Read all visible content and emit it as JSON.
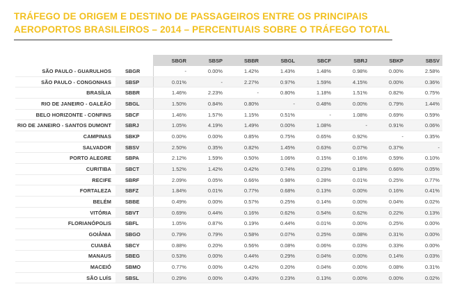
{
  "title": {
    "line1": "TRÁFEGO DE ORIGEM E DESTINO DE PASSAGEIROS ENTRE OS PRINCIPAIS",
    "line2": "AEROPORTOS BRASILEIROS – 2014 – PERCENTUAIS SOBRE O TRÁFEGO TOTAL"
  },
  "table": {
    "columns": [
      "SBGR",
      "SBSP",
      "SBBR",
      "SBGL",
      "SBCF",
      "SBRJ",
      "SBKP",
      "SBSV"
    ],
    "rows": [
      {
        "name": "SÃO PAULO - GUARULHOS",
        "code": "SBGR",
        "values": [
          "-",
          "0.00%",
          "1.42%",
          "1.43%",
          "1.48%",
          "0.98%",
          "0.00%",
          "2.58%"
        ]
      },
      {
        "name": "SÃO PAULO - CONGONHAS",
        "code": "SBSP",
        "values": [
          "0.01%",
          "-",
          "2.27%",
          "0.97%",
          "1.59%",
          "4.15%",
          "0.00%",
          "0.36%"
        ]
      },
      {
        "name": "BRASÍLIA",
        "code": "SBBR",
        "values": [
          "1.46%",
          "2.23%",
          "-",
          "0.80%",
          "1.18%",
          "1.51%",
          "0.82%",
          "0.75%"
        ]
      },
      {
        "name": "RIO DE JANEIRO - GALEÃO",
        "code": "SBGL",
        "values": [
          "1.50%",
          "0.84%",
          "0.80%",
          "-",
          "0.48%",
          "0.00%",
          "0.79%",
          "1.44%"
        ]
      },
      {
        "name": "BELO HORIZONTE - CONFINS",
        "code": "SBCF",
        "values": [
          "1.46%",
          "1.57%",
          "1.15%",
          "0.51%",
          "-",
          "1.08%",
          "0.69%",
          "0.59%"
        ]
      },
      {
        "name": "RIO DE JANEIRO - SANTOS DUMONT",
        "code": "SBRJ",
        "values": [
          "1.05%",
          "4.19%",
          "1.49%",
          "0.00%",
          "1.08%",
          "-",
          "0.91%",
          "0.06%"
        ]
      },
      {
        "name": "CAMPINAS",
        "code": "SBKP",
        "values": [
          "0.00%",
          "0.00%",
          "0.85%",
          "0.75%",
          "0.65%",
          "0.92%",
          "-",
          "0.35%"
        ]
      },
      {
        "name": "SALVADOR",
        "code": "SBSV",
        "values": [
          "2.50%",
          "0.35%",
          "0.82%",
          "1.45%",
          "0.63%",
          "0.07%",
          "0.37%",
          "-"
        ]
      },
      {
        "name": "PORTO ALEGRE",
        "code": "SBPA",
        "values": [
          "2.12%",
          "1.59%",
          "0.50%",
          "1.06%",
          "0.15%",
          "0.16%",
          "0.59%",
          "0.10%"
        ]
      },
      {
        "name": "CURITIBA",
        "code": "SBCT",
        "values": [
          "1.52%",
          "1.42%",
          "0.42%",
          "0.74%",
          "0.23%",
          "0.18%",
          "0.66%",
          "0.05%"
        ]
      },
      {
        "name": "RECIFE",
        "code": "SBRF",
        "values": [
          "2.09%",
          "0.05%",
          "0.66%",
          "0.98%",
          "0.28%",
          "0.01%",
          "0.25%",
          "0.77%"
        ]
      },
      {
        "name": "FORTALEZA",
        "code": "SBFZ",
        "values": [
          "1.84%",
          "0.01%",
          "0.77%",
          "0.68%",
          "0.13%",
          "0.00%",
          "0.16%",
          "0.41%"
        ]
      },
      {
        "name": "BELÉM",
        "code": "SBBE",
        "values": [
          "0.49%",
          "0.00%",
          "0.57%",
          "0.25%",
          "0.14%",
          "0.00%",
          "0.04%",
          "0.02%"
        ]
      },
      {
        "name": "VITÓRIA",
        "code": "SBVT",
        "values": [
          "0.69%",
          "0.44%",
          "0.16%",
          "0.62%",
          "0.54%",
          "0.62%",
          "0.22%",
          "0.13%"
        ]
      },
      {
        "name": "FLORIANÓPOLIS",
        "code": "SBFL",
        "values": [
          "1.05%",
          "0.87%",
          "0.19%",
          "0.44%",
          "0.01%",
          "0.00%",
          "0.25%",
          "0.00%"
        ]
      },
      {
        "name": "GOIÂNIA",
        "code": "SBGO",
        "values": [
          "0.79%",
          "0.79%",
          "0.58%",
          "0.07%",
          "0.25%",
          "0.08%",
          "0.31%",
          "0.00%"
        ]
      },
      {
        "name": "CUIABÁ",
        "code": "SBCY",
        "values": [
          "0.88%",
          "0.20%",
          "0.56%",
          "0.08%",
          "0.06%",
          "0.03%",
          "0.33%",
          "0.00%"
        ]
      },
      {
        "name": "MANAUS",
        "code": "SBEG",
        "values": [
          "0.53%",
          "0.00%",
          "0.44%",
          "0.29%",
          "0.04%",
          "0.00%",
          "0.14%",
          "0.03%"
        ]
      },
      {
        "name": "MACEIÓ",
        "code": "SBMO",
        "values": [
          "0.77%",
          "0.00%",
          "0.42%",
          "0.20%",
          "0.04%",
          "0.00%",
          "0.08%",
          "0.31%"
        ]
      },
      {
        "name": "SÃO LUÍS",
        "code": "SBSL",
        "values": [
          "0.29%",
          "0.00%",
          "0.43%",
          "0.23%",
          "0.13%",
          "0.00%",
          "0.00%",
          "0.02%"
        ]
      }
    ]
  },
  "colors": {
    "title": "#f2c01e",
    "header_bg": "#d7d7d7",
    "stripe": "#f4f4f4"
  }
}
